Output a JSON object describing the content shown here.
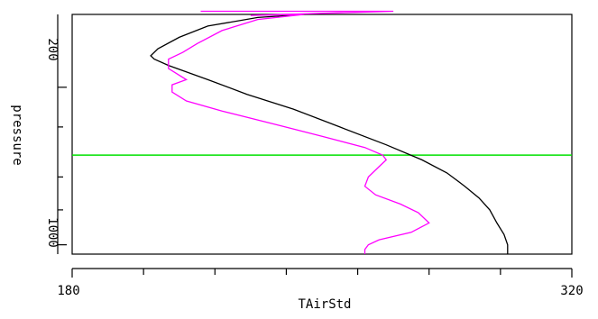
{
  "chart_data": {
    "type": "line",
    "title": "",
    "xlabel": "TAirStd",
    "ylabel": "pressure",
    "xlim": [
      180,
      320
    ],
    "ylim_log_pressure": [
      1100,
      95
    ],
    "y_scale": "log",
    "y_inverted": true,
    "x_tick_labels": [
      "180",
      "320"
    ],
    "x_ticks": [
      180,
      200,
      220,
      240,
      260,
      280,
      300,
      320
    ],
    "y_tick_labels": [
      "200",
      "1000"
    ],
    "y_ticks_major": [
      200,
      1000
    ],
    "y_ticks_minor": [
      300,
      500,
      700
    ],
    "reference_line": {
      "pressure": 400,
      "color": "#00e000"
    },
    "series": [
      {
        "color": "#000000",
        "points": [
          [
            302,
            1100
          ],
          [
            302,
            1000
          ],
          [
            301,
            900
          ],
          [
            299,
            800
          ],
          [
            297,
            700
          ],
          [
            294,
            620
          ],
          [
            290,
            550
          ],
          [
            285,
            480
          ],
          [
            278,
            420
          ],
          [
            268,
            360
          ],
          [
            255,
            300
          ],
          [
            242,
            250
          ],
          [
            229,
            215
          ],
          [
            218,
            185
          ],
          [
            207,
            160
          ],
          [
            203,
            150
          ],
          [
            202,
            145
          ],
          [
            204,
            135
          ],
          [
            210,
            120
          ],
          [
            218,
            107
          ],
          [
            232,
            98
          ],
          [
            245,
            95
          ]
        ]
      },
      {
        "color": "#ff00ff",
        "points": [
          [
            262,
            1100
          ],
          [
            262,
            1050
          ],
          [
            263,
            1000
          ],
          [
            266,
            950
          ],
          [
            275,
            880
          ],
          [
            280,
            800
          ],
          [
            277,
            720
          ],
          [
            272,
            660
          ],
          [
            265,
            600
          ],
          [
            262,
            550
          ],
          [
            263,
            500
          ],
          [
            266,
            450
          ],
          [
            268,
            420
          ],
          [
            267,
            400
          ],
          [
            262,
            370
          ],
          [
            250,
            330
          ],
          [
            238,
            295
          ],
          [
            222,
            255
          ],
          [
            212,
            230
          ],
          [
            208,
            210
          ],
          [
            208,
            195
          ],
          [
            212,
            185
          ],
          [
            207,
            165
          ],
          [
            207,
            150
          ],
          [
            211,
            140
          ],
          [
            215,
            128
          ],
          [
            222,
            112
          ],
          [
            232,
            100
          ],
          [
            245,
            95
          ],
          [
            230,
            96
          ],
          [
            270,
            92
          ],
          [
            216,
            92
          ]
        ]
      }
    ]
  }
}
